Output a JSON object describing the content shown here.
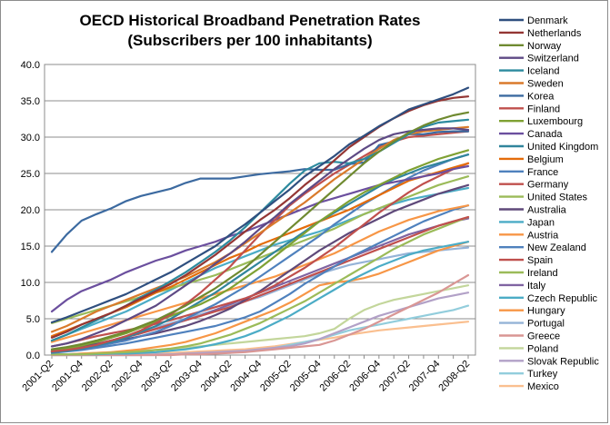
{
  "chart_data": {
    "type": "line",
    "title": "OECD Historical Broadband Penetration Rates",
    "subtitle": "(Subscribers per 100 inhabitants)",
    "xlabel": "",
    "ylabel": "",
    "ylim": [
      0,
      40
    ],
    "yticks": [
      "0.0",
      "5.0",
      "10.0",
      "15.0",
      "20.0",
      "25.0",
      "30.0",
      "35.0",
      "40.0"
    ],
    "grid": true,
    "legend_position": "right",
    "x": [
      "2001-Q2",
      "2001-Q3",
      "2001-Q4",
      "2002-Q1",
      "2002-Q2",
      "2002-Q3",
      "2002-Q4",
      "2003-Q1",
      "2003-Q2",
      "2003-Q3",
      "2003-Q4",
      "2004-Q1",
      "2004-Q2",
      "2004-Q3",
      "2004-Q4",
      "2005-Q1",
      "2005-Q2",
      "2005-Q3",
      "2005-Q4",
      "2006-Q1",
      "2006-Q2",
      "2006-Q3",
      "2006-Q4",
      "2007-Q1",
      "2007-Q2",
      "2007-Q3",
      "2007-Q4",
      "2008-Q1",
      "2008-Q2"
    ],
    "x_tick_labels": [
      "2001-Q2",
      "2001-Q4",
      "2002-Q2",
      "2002-Q4",
      "2003-Q2",
      "2003-Q4",
      "2004-Q2",
      "2004-Q4",
      "2005-Q2",
      "2005-Q4",
      "2006-Q2",
      "2006-Q4",
      "2007-Q2",
      "2007-Q4",
      "2008-Q2"
    ],
    "series": [
      {
        "name": "Denmark",
        "color": "#2f4f7f",
        "values": [
          4.5,
          5.2,
          6.0,
          6.8,
          7.6,
          8.4,
          9.4,
          10.4,
          11.4,
          12.6,
          13.8,
          15.0,
          16.6,
          18.0,
          19.6,
          21.2,
          22.8,
          24.6,
          26.0,
          27.4,
          29.0,
          30.2,
          31.5,
          32.6,
          33.8,
          34.5,
          35.2,
          35.9,
          36.8
        ]
      },
      {
        "name": "Netherlands",
        "color": "#943634",
        "values": [
          2.4,
          3.2,
          4.2,
          5.0,
          5.8,
          6.8,
          7.8,
          8.8,
          9.8,
          11.0,
          12.4,
          13.8,
          15.4,
          17.0,
          18.6,
          20.0,
          21.6,
          23.4,
          25.0,
          26.8,
          28.6,
          30.0,
          31.4,
          32.6,
          33.6,
          34.4,
          35.0,
          35.4,
          35.6
        ]
      },
      {
        "name": "Norway",
        "color": "#6f8a30",
        "values": [
          0.8,
          1.1,
          1.5,
          2.0,
          2.6,
          3.2,
          4.0,
          4.8,
          5.8,
          6.8,
          8.0,
          9.2,
          10.6,
          12.0,
          13.8,
          15.6,
          17.4,
          19.2,
          21.0,
          22.8,
          24.6,
          26.4,
          28.0,
          29.4,
          30.6,
          31.6,
          32.4,
          33.0,
          33.4
        ]
      },
      {
        "name": "Switzerland",
        "color": "#5e4a85",
        "values": [
          1.2,
          1.6,
          2.2,
          3.0,
          3.8,
          4.8,
          5.8,
          6.8,
          8.2,
          9.6,
          11.0,
          12.6,
          14.0,
          15.6,
          17.4,
          19.0,
          20.8,
          22.4,
          24.0,
          25.6,
          27.0,
          28.4,
          29.6,
          30.4,
          30.8,
          31.0,
          31.2,
          31.2,
          31.0
        ]
      },
      {
        "name": "Iceland",
        "color": "#2c8a9e",
        "values": [
          2.0,
          2.8,
          3.8,
          4.8,
          5.8,
          6.8,
          8.0,
          9.0,
          10.2,
          11.4,
          12.8,
          14.2,
          15.8,
          17.6,
          19.6,
          21.6,
          23.6,
          25.4,
          26.4,
          26.6,
          26.4,
          27.0,
          28.0,
          29.2,
          30.4,
          31.4,
          32.0,
          32.2,
          32.4
        ]
      },
      {
        "name": "Sweden",
        "color": "#d97a2b",
        "values": [
          3.2,
          4.0,
          5.0,
          6.0,
          6.8,
          7.6,
          8.4,
          9.2,
          10.0,
          10.8,
          11.8,
          12.8,
          14.0,
          15.4,
          16.8,
          18.2,
          19.6,
          21.0,
          22.6,
          24.2,
          25.6,
          27.0,
          28.4,
          29.6,
          30.4,
          30.8,
          31.0,
          31.2,
          31.4
        ]
      },
      {
        "name": "Korea",
        "color": "#3c6aa0",
        "values": [
          14.2,
          16.6,
          18.5,
          19.4,
          20.2,
          21.2,
          21.9,
          22.4,
          22.9,
          23.7,
          24.3,
          24.3,
          24.3,
          24.6,
          24.9,
          25.1,
          25.3,
          25.6,
          25.5,
          25.5,
          26.3,
          26.5,
          28.9,
          29.4,
          30.4,
          30.4,
          30.7,
          30.8,
          30.8
        ]
      },
      {
        "name": "Finland",
        "color": "#c0504d",
        "values": [
          0.5,
          0.7,
          1.0,
          1.4,
          2.0,
          2.6,
          3.4,
          4.4,
          5.6,
          7.0,
          8.6,
          10.4,
          12.2,
          14.4,
          16.6,
          18.6,
          20.6,
          22.2,
          23.6,
          25.0,
          26.2,
          27.4,
          28.6,
          29.4,
          30.0,
          30.2,
          30.4,
          30.6,
          30.8
        ]
      },
      {
        "name": "Luxembourg",
        "color": "#7fa133",
        "values": [
          0.6,
          0.9,
          1.3,
          1.8,
          2.4,
          3.0,
          3.8,
          4.6,
          5.4,
          6.2,
          7.0,
          8.0,
          9.2,
          10.6,
          12.0,
          13.6,
          15.2,
          16.8,
          18.4,
          19.8,
          21.2,
          22.4,
          23.4,
          24.4,
          25.4,
          26.2,
          27.0,
          27.6,
          28.2
        ]
      },
      {
        "name": "Canada",
        "color": "#6b4f9e",
        "values": [
          6.0,
          7.6,
          8.8,
          9.6,
          10.4,
          11.4,
          12.2,
          13.0,
          13.6,
          14.4,
          15.0,
          15.6,
          16.4,
          17.0,
          17.8,
          18.6,
          19.4,
          20.2,
          21.0,
          21.6,
          22.2,
          22.8,
          23.4,
          23.8,
          24.2,
          24.6,
          25.0,
          25.6,
          26.0
        ]
      },
      {
        "name": "United Kingdom",
        "color": "#31859c",
        "values": [
          0.4,
          0.6,
          0.9,
          1.3,
          1.8,
          2.4,
          3.2,
          4.0,
          5.0,
          6.2,
          7.4,
          8.6,
          10.0,
          11.4,
          12.8,
          14.2,
          15.6,
          17.0,
          18.4,
          19.6,
          20.8,
          22.0,
          23.2,
          24.2,
          25.0,
          25.8,
          26.4,
          27.0,
          27.6
        ]
      },
      {
        "name": "Belgium",
        "color": "#e46c0a",
        "values": [
          2.6,
          3.4,
          4.2,
          5.0,
          5.8,
          6.6,
          7.6,
          8.6,
          9.4,
          10.4,
          11.4,
          12.4,
          13.4,
          14.2,
          15.2,
          16.0,
          16.8,
          17.6,
          18.4,
          19.2,
          20.0,
          21.0,
          22.0,
          23.0,
          24.0,
          24.6,
          25.2,
          25.8,
          26.4
        ]
      },
      {
        "name": "France",
        "color": "#4f81bd",
        "values": [
          0.4,
          0.6,
          0.9,
          1.2,
          1.6,
          2.0,
          2.6,
          3.2,
          4.0,
          5.0,
          6.0,
          7.0,
          8.2,
          9.4,
          10.8,
          12.2,
          13.6,
          15.0,
          16.4,
          18.0,
          19.4,
          20.8,
          22.0,
          23.2,
          24.4,
          25.4,
          26.2,
          27.0,
          27.6
        ]
      },
      {
        "name": "Germany",
        "color": "#c0504d",
        "values": [
          1.2,
          1.6,
          2.1,
          2.6,
          3.0,
          3.4,
          3.8,
          4.3,
          4.8,
          5.4,
          6.0,
          6.6,
          7.2,
          7.8,
          8.6,
          9.6,
          10.8,
          12.0,
          13.4,
          14.8,
          16.4,
          18.0,
          19.6,
          21.0,
          22.4,
          23.6,
          24.6,
          25.6,
          26.4
        ]
      },
      {
        "name": "United States",
        "color": "#9bbb59",
        "values": [
          4.4,
          5.0,
          5.6,
          6.2,
          6.8,
          7.4,
          8.0,
          8.6,
          9.2,
          9.8,
          10.4,
          11.0,
          11.8,
          12.6,
          13.4,
          14.2,
          15.0,
          15.8,
          16.6,
          17.4,
          18.4,
          19.4,
          20.2,
          21.0,
          21.8,
          22.6,
          23.4,
          24.0,
          24.6
        ]
      },
      {
        "name": "Australia",
        "color": "#5f497a",
        "values": [
          0.6,
          0.9,
          1.2,
          1.5,
          1.8,
          2.2,
          2.6,
          3.0,
          3.5,
          4.0,
          4.7,
          5.5,
          6.4,
          7.6,
          8.8,
          10.2,
          11.6,
          13.0,
          14.4,
          15.6,
          16.8,
          17.8,
          18.8,
          19.8,
          20.6,
          21.4,
          22.2,
          22.8,
          23.4
        ]
      },
      {
        "name": "Japan",
        "color": "#4bacc6",
        "values": [
          2.0,
          2.8,
          3.6,
          4.4,
          5.2,
          6.0,
          7.0,
          8.0,
          9.0,
          10.0,
          11.0,
          12.0,
          12.8,
          13.6,
          14.4,
          15.2,
          15.8,
          16.4,
          17.0,
          17.8,
          18.6,
          19.4,
          20.2,
          20.8,
          21.4,
          21.8,
          22.2,
          22.6,
          23.0
        ]
      },
      {
        "name": "Austria",
        "color": "#f79646",
        "values": [
          1.8,
          2.4,
          3.0,
          3.6,
          4.2,
          4.8,
          5.4,
          6.0,
          6.6,
          7.2,
          7.8,
          8.4,
          9.0,
          9.6,
          10.2,
          10.8,
          11.6,
          12.4,
          13.2,
          14.0,
          15.0,
          16.0,
          17.0,
          17.8,
          18.6,
          19.2,
          19.8,
          20.2,
          20.6
        ]
      },
      {
        "name": "New Zealand",
        "color": "#4f81bd",
        "values": [
          0.3,
          0.5,
          0.7,
          1.0,
          1.3,
          1.6,
          2.0,
          2.4,
          2.8,
          3.2,
          3.6,
          4.0,
          4.6,
          5.2,
          6.0,
          7.2,
          8.4,
          9.8,
          11.0,
          12.2,
          13.4,
          14.4,
          15.4,
          16.4,
          17.4,
          18.4,
          19.2,
          20.0,
          20.6
        ]
      },
      {
        "name": "Spain",
        "color": "#c0504d",
        "values": [
          0.5,
          0.8,
          1.1,
          1.5,
          2.0,
          2.5,
          3.0,
          3.6,
          4.2,
          4.8,
          5.4,
          6.0,
          6.6,
          7.4,
          8.2,
          9.0,
          9.8,
          10.6,
          11.4,
          12.2,
          13.0,
          13.8,
          14.6,
          15.4,
          16.2,
          17.0,
          17.8,
          18.4,
          19.0
        ]
      },
      {
        "name": "Ireland",
        "color": "#9bbb59",
        "values": [
          0.1,
          0.1,
          0.1,
          0.2,
          0.3,
          0.4,
          0.5,
          0.7,
          0.9,
          1.2,
          1.6,
          2.2,
          2.8,
          3.6,
          4.4,
          5.4,
          6.4,
          7.4,
          8.6,
          9.8,
          11.0,
          12.2,
          13.4,
          14.6,
          15.6,
          16.6,
          17.4,
          18.2,
          19.0
        ]
      },
      {
        "name": "Italy",
        "color": "#8064a2",
        "values": [
          0.5,
          0.8,
          1.1,
          1.5,
          2.0,
          2.5,
          3.0,
          3.6,
          4.2,
          4.8,
          5.4,
          6.2,
          7.0,
          7.8,
          8.6,
          9.4,
          10.2,
          11.0,
          11.8,
          12.6,
          13.4,
          14.2,
          15.0,
          15.8,
          16.6,
          17.2,
          17.8,
          18.4,
          18.8
        ]
      },
      {
        "name": "Czech Republic",
        "color": "#4bacc6",
        "values": [
          0.1,
          0.1,
          0.1,
          0.1,
          0.2,
          0.2,
          0.3,
          0.4,
          0.6,
          0.8,
          1.1,
          1.5,
          2.0,
          2.6,
          3.4,
          4.4,
          5.4,
          6.6,
          7.8,
          9.0,
          10.2,
          11.2,
          12.2,
          13.0,
          13.8,
          14.4,
          14.8,
          15.2,
          15.6
        ]
      },
      {
        "name": "Hungary",
        "color": "#f79646",
        "values": [
          0.1,
          0.1,
          0.2,
          0.3,
          0.4,
          0.6,
          0.8,
          1.1,
          1.4,
          1.8,
          2.4,
          3.0,
          3.8,
          4.6,
          5.4,
          6.2,
          7.2,
          8.4,
          9.6,
          10.0,
          10.2,
          10.6,
          11.2,
          12.0,
          12.8,
          13.6,
          14.4,
          15.0,
          15.6
        ]
      },
      {
        "name": "Portugal",
        "color": "#95b3d7",
        "values": [
          0.6,
          0.9,
          1.2,
          1.6,
          2.0,
          2.6,
          3.2,
          3.8,
          4.4,
          5.0,
          5.6,
          6.2,
          6.8,
          7.4,
          8.0,
          8.8,
          9.6,
          10.4,
          11.2,
          11.8,
          12.4,
          12.8,
          13.2,
          13.6,
          14.0,
          14.2,
          14.4,
          14.6,
          14.8
        ]
      },
      {
        "name": "Greece",
        "color": "#d99694",
        "values": [
          0.0,
          0.0,
          0.0,
          0.0,
          0.0,
          0.0,
          0.0,
          0.0,
          0.0,
          0.1,
          0.1,
          0.2,
          0.3,
          0.4,
          0.6,
          0.8,
          1.0,
          1.2,
          1.4,
          2.0,
          2.8,
          3.6,
          4.6,
          5.6,
          6.6,
          7.6,
          8.6,
          9.8,
          11.0
        ]
      },
      {
        "name": "Poland",
        "color": "#c3d69b",
        "values": [
          0.1,
          0.1,
          0.2,
          0.3,
          0.4,
          0.5,
          0.6,
          0.7,
          0.8,
          1.0,
          1.2,
          1.4,
          1.6,
          1.8,
          2.0,
          2.2,
          2.4,
          2.6,
          3.0,
          3.6,
          5.0,
          6.2,
          7.0,
          7.6,
          8.0,
          8.4,
          8.8,
          9.2,
          9.6
        ]
      },
      {
        "name": "Slovak Republic",
        "color": "#b2a1c7",
        "values": [
          0.0,
          0.0,
          0.0,
          0.0,
          0.0,
          0.0,
          0.0,
          0.1,
          0.1,
          0.2,
          0.3,
          0.4,
          0.5,
          0.6,
          0.8,
          1.0,
          1.2,
          1.6,
          2.2,
          3.0,
          3.8,
          4.6,
          5.4,
          6.0,
          6.6,
          7.2,
          7.8,
          8.2,
          8.6
        ]
      },
      {
        "name": "Turkey",
        "color": "#92cddc",
        "values": [
          0.0,
          0.0,
          0.0,
          0.0,
          0.0,
          0.0,
          0.0,
          0.0,
          0.1,
          0.1,
          0.2,
          0.3,
          0.4,
          0.5,
          0.7,
          1.0,
          1.4,
          1.8,
          2.2,
          2.8,
          3.4,
          3.8,
          4.2,
          4.6,
          5.0,
          5.4,
          5.8,
          6.2,
          6.8
        ]
      },
      {
        "name": "Mexico",
        "color": "#fabf8f",
        "values": [
          0.0,
          0.0,
          0.1,
          0.1,
          0.1,
          0.2,
          0.2,
          0.3,
          0.3,
          0.4,
          0.5,
          0.6,
          0.7,
          0.8,
          1.0,
          1.2,
          1.5,
          1.8,
          2.1,
          2.4,
          2.8,
          3.1,
          3.4,
          3.6,
          3.8,
          4.0,
          4.2,
          4.4,
          4.6
        ]
      }
    ]
  }
}
